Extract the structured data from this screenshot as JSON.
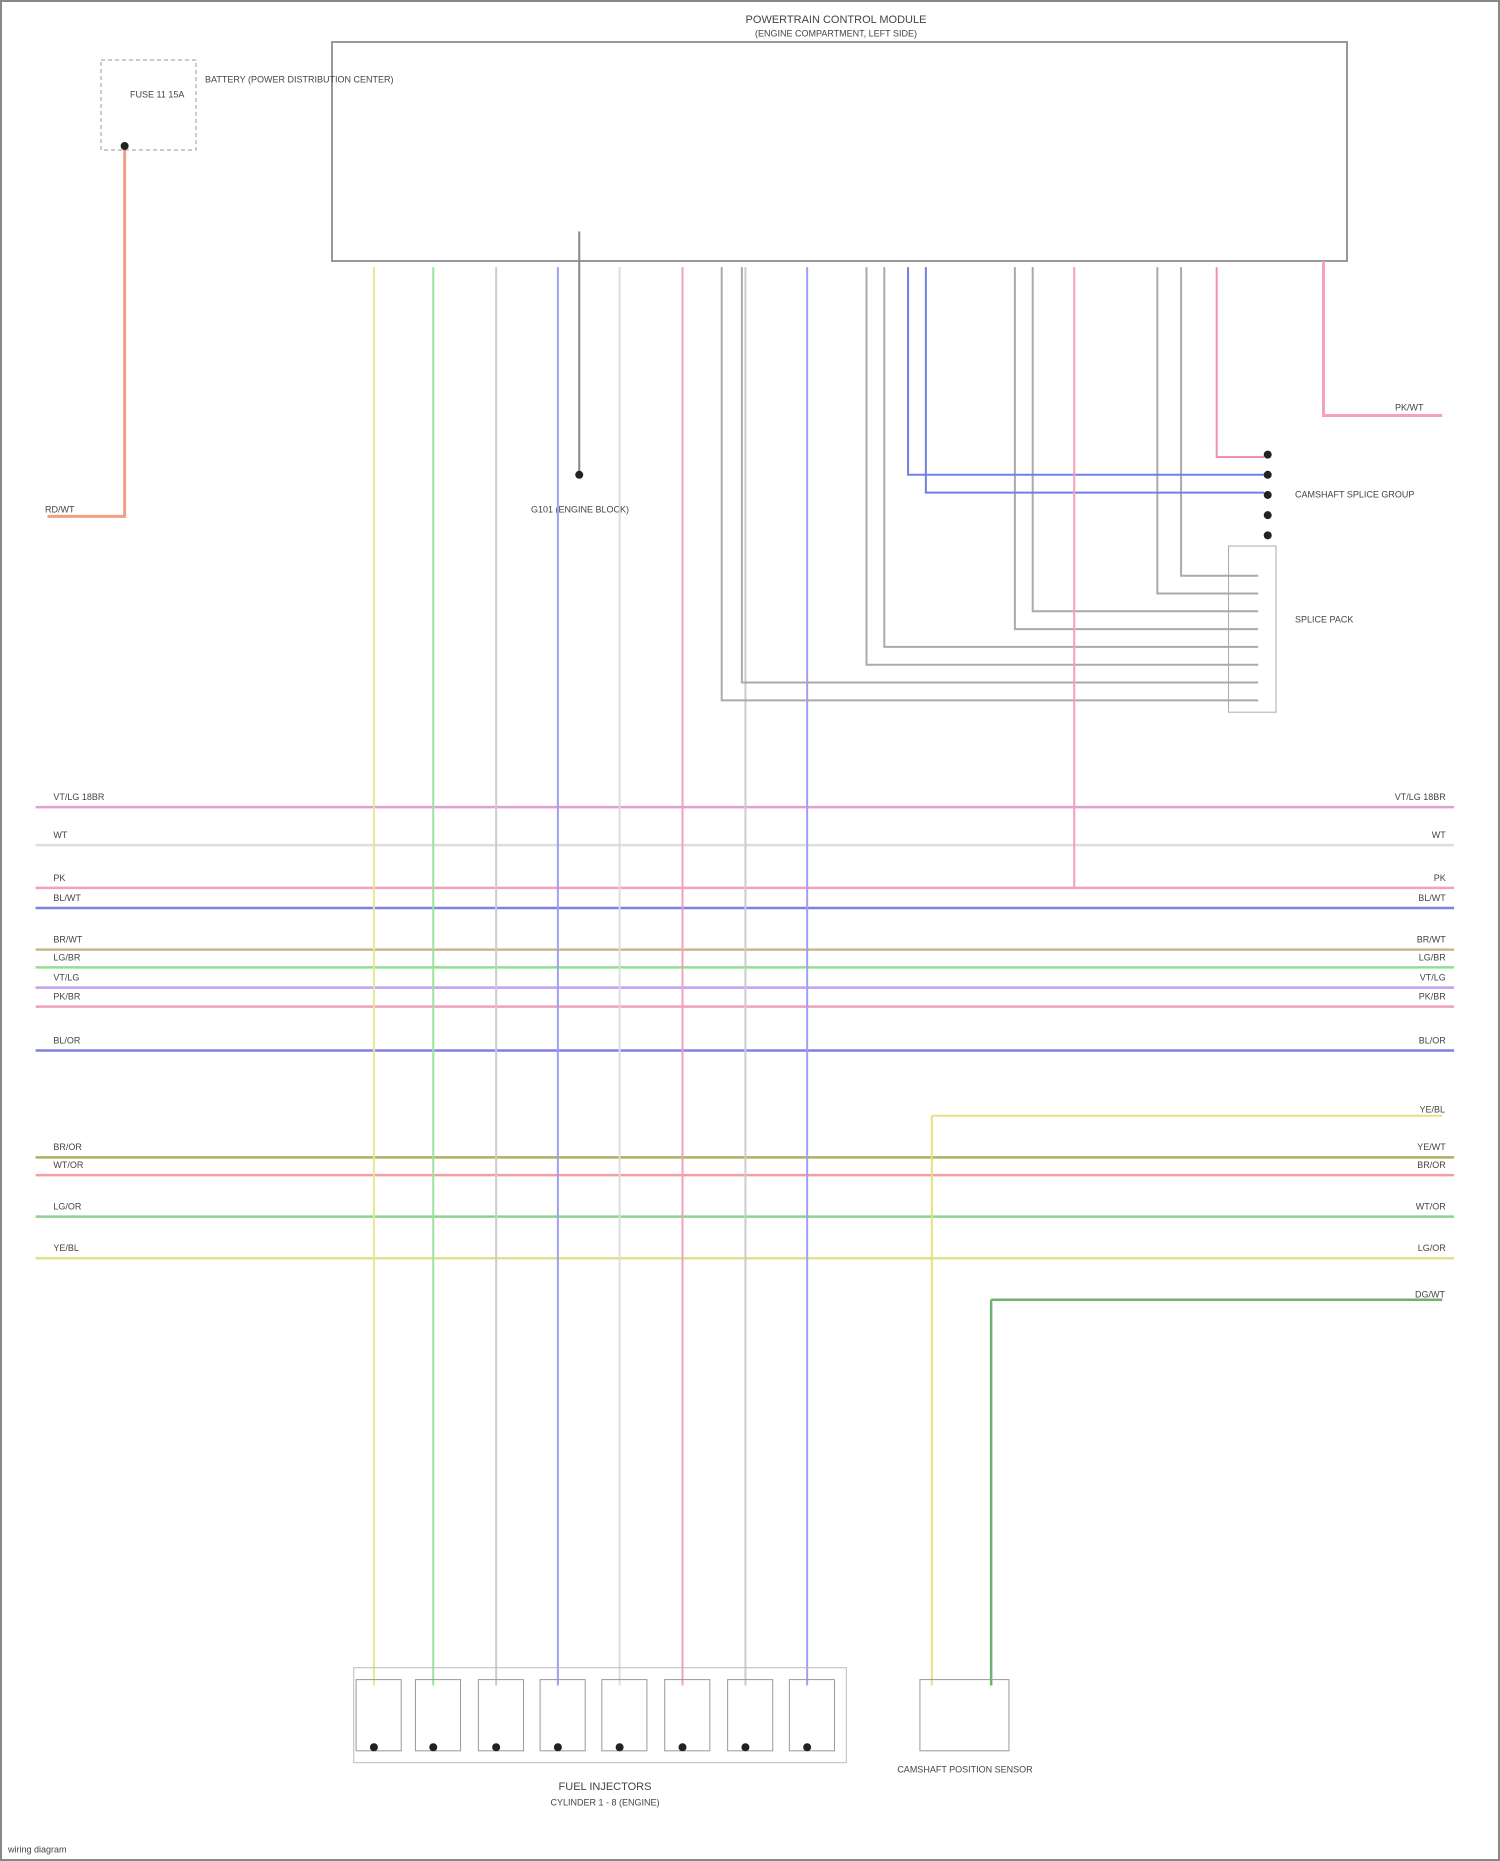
{
  "module": {
    "title": "POWERTRAIN CONTROL MODULE",
    "subtitle": "(ENGINE COMPARTMENT, LEFT SIDE)"
  },
  "fuse": {
    "label": "FUSE 11 15A",
    "source": "BATTERY (POWER DISTRIBUTION CENTER)"
  },
  "ground": {
    "label": "G101 (ENGINE BLOCK)"
  },
  "connector_group": {
    "label": "CAMSHAFT SPLICE GROUP"
  },
  "splice_block": {
    "label": "SPLICE PACK"
  },
  "battery_wire": {
    "left": "RD/WT",
    "right": "PK/WT"
  },
  "wires": [
    {
      "left": "VT/LG 18BR",
      "right": "VT/LG 18BR"
    },
    {
      "left": "WT",
      "right": "WT"
    },
    {
      "left": "PK",
      "right": "PK"
    },
    {
      "left": "BL/WT",
      "right": "BL/WT"
    },
    {
      "left": "BR/WT",
      "right": "BR/WT"
    },
    {
      "left": "LG/BR",
      "right": "LG/BR"
    },
    {
      "left": "VT/LG",
      "right": "VT/LG"
    },
    {
      "left": "PK/BR",
      "right": "PK/BR"
    },
    {
      "left": "BL/OR",
      "right": "BL/OR"
    },
    {
      "left": "BR/OR",
      "right": "YE/WT"
    },
    {
      "left": "WT/OR",
      "right": "BR/OR"
    },
    {
      "left": "LG/OR",
      "right": "WT/OR"
    },
    {
      "left": "YE/BL",
      "right": "LG/OR"
    }
  ],
  "extra_wires": {
    "upper": "YE/BL",
    "lower": "DG/WT"
  },
  "injectors": {
    "label": "FUEL INJECTORS",
    "detail": "CYLINDER 1 - 8 (ENGINE)"
  },
  "sensor": {
    "label": "CAMSHAFT POSITION SENSOR"
  },
  "footer": "wiring diagram"
}
